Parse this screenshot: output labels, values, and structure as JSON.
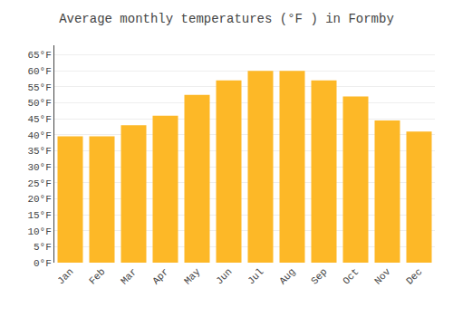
{
  "chart_data": {
    "type": "bar",
    "title": "Average monthly temperatures (°F ) in Formby",
    "categories": [
      "Jan",
      "Feb",
      "Mar",
      "Apr",
      "May",
      "Jun",
      "Jul",
      "Aug",
      "Sep",
      "Oct",
      "Nov",
      "Dec"
    ],
    "values": [
      39.5,
      39.5,
      43,
      46,
      52.5,
      57,
      60,
      60,
      57,
      52,
      44.5,
      41
    ],
    "color": "#FDB827",
    "ylim": [
      0,
      68
    ],
    "yticks": [
      {
        "value": 0,
        "label": "0°F"
      },
      {
        "value": 5,
        "label": "5°F"
      },
      {
        "value": 10,
        "label": "10°F"
      },
      {
        "value": 15,
        "label": "15°F"
      },
      {
        "value": 20,
        "label": "20°F"
      },
      {
        "value": 25,
        "label": "25°F"
      },
      {
        "value": 30,
        "label": "30°F"
      },
      {
        "value": 35,
        "label": "35°F"
      },
      {
        "value": 40,
        "label": "40°F"
      },
      {
        "value": 45,
        "label": "45°F"
      },
      {
        "value": 50,
        "label": "50°F"
      },
      {
        "value": 55,
        "label": "55°F"
      },
      {
        "value": 60,
        "label": "60°F"
      },
      {
        "value": 65,
        "label": "65°F"
      }
    ],
    "grid": true
  }
}
